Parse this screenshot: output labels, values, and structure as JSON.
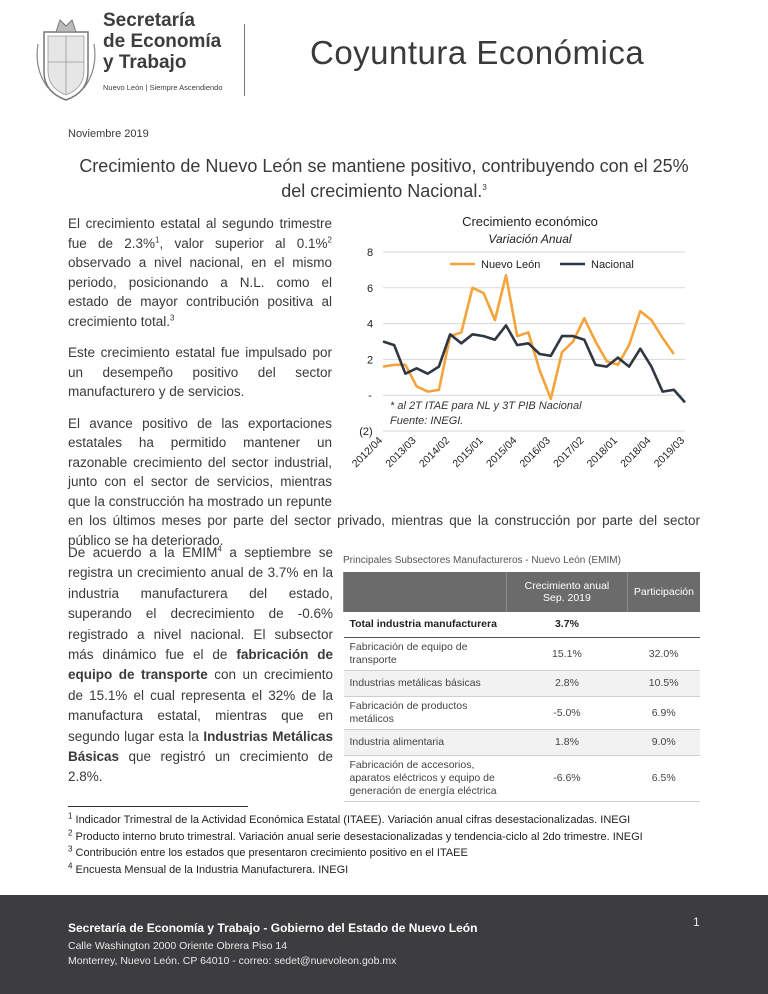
{
  "header": {
    "org_lines": [
      "Secretaría",
      "de Economía",
      "y Trabajo"
    ],
    "tagline": "Nuevo León | Siempre Ascendiendo",
    "title": "Coyuntura Económica"
  },
  "date": "Noviembre 2019",
  "headline": [
    {
      "text": "Crecimiento de Nuevo León se mantiene positivo, contribuyendo con el 25% del crecimiento Nacional."
    },
    {
      "text": "3",
      "style": "sup"
    }
  ],
  "paragraphs": [
    [
      {
        "text": "El crecimiento estatal al segundo trimestre fue de 2.3%"
      },
      {
        "text": "1",
        "style": "sup"
      },
      {
        "text": ", valor superior al 0.1%"
      },
      {
        "text": "2",
        "style": "sup"
      },
      {
        "text": " observado a nivel nacional, en el mismo periodo, posicionando a N.L. como el estado de mayor contribución positiva al crecimiento total."
      },
      {
        "text": "3",
        "style": "sup"
      }
    ],
    [
      {
        "text": "Este crecimiento estatal fue impulsado por un desempeño positivo del sector manufacturero y de servicios."
      }
    ],
    [
      {
        "text": "El avance positivo de las exportaciones estatales ha permitido mantener un razonable crecimiento del sector industrial, junto con el sector de servicios, mientras que la construcción ha mostrado un repunte en los últimos meses por parte del sector privado, mientras que la construcción por parte del sector público se ha deteriorado."
      }
    ],
    [
      {
        "text": "De acuerdo a la EMIM"
      },
      {
        "text": "4",
        "style": "sup"
      },
      {
        "text": " a septiembre se registra un crecimiento anual de 3.7% en la industria manufacturera del estado, superando el decrecimiento de -0.6% registrado a nivel nacional. El subsector más dinámico fue el de "
      },
      {
        "text": "fabricación de equipo de transporte",
        "style": "bold"
      },
      {
        "text": " con un crecimiento de 15.1% el cual representa el 32% de la manufactura estatal, mientras que en segundo lugar esta la "
      },
      {
        "text": "Industrias Metálicas Básicas",
        "style": "bold"
      },
      {
        "text": " que registró un crecimiento de 2.8%."
      }
    ]
  ],
  "chart_data": {
    "type": "line",
    "title": "Crecimiento económico",
    "subtitle": "Variación Anual",
    "categories": [
      "2012/04",
      null,
      null,
      "2013/03",
      null,
      null,
      "2014/02",
      null,
      null,
      "2015/01",
      null,
      null,
      "2015/04",
      null,
      null,
      "2016/03",
      null,
      null,
      "2017/02",
      null,
      null,
      "2018/01",
      null,
      null,
      "2018/04",
      null,
      null,
      "2019/03"
    ],
    "series": [
      {
        "name": "Nuevo León",
        "color": "#f4a43a",
        "values": [
          1.6,
          1.7,
          1.7,
          0.5,
          0.2,
          0.3,
          3.3,
          3.5,
          6.0,
          5.7,
          4.2,
          6.7,
          3.3,
          3.5,
          1.4,
          -0.2,
          2.4,
          3.0,
          4.3,
          3.0,
          1.9,
          1.7,
          2.8,
          4.7,
          4.2,
          3.2,
          2.3,
          null
        ]
      },
      {
        "name": "Nacional",
        "color": "#2f3842",
        "values": [
          3.0,
          2.8,
          1.2,
          1.5,
          1.2,
          1.6,
          3.4,
          2.9,
          3.4,
          3.3,
          3.1,
          3.9,
          2.8,
          2.9,
          2.3,
          2.2,
          3.3,
          3.3,
          3.1,
          1.7,
          1.6,
          2.1,
          1.6,
          2.6,
          1.6,
          0.2,
          0.3,
          -0.4
        ]
      }
    ],
    "ylim": [
      -2,
      8
    ],
    "yticks": [
      {
        "value": -2,
        "label": "(2)"
      },
      {
        "value": 0,
        "label": "-"
      },
      2,
      4,
      6,
      8
    ],
    "grid": true,
    "annotations": [
      "* al 2T ITAE para NL y 3T PIB Nacional",
      "Fuente: INEGI."
    ]
  },
  "table": {
    "title": "Principales Subsectores Manufactureros - Nuevo León (EMIM)",
    "headers": [
      "Crecimiento anual Sep. 2019",
      "Participación"
    ],
    "rows": [
      {
        "label": "Total industria manufacturera",
        "growth": "3.7%",
        "total": true
      },
      {
        "label": "Fabricación de equipo de transporte",
        "growth": "15.1%",
        "share": "32.0%"
      },
      {
        "label": "Industrias metálicas básicas",
        "growth": "2.8%",
        "share": "10.5%"
      },
      {
        "label": "Fabricación de productos metálicos",
        "growth": "-5.0%",
        "share": "6.9%"
      },
      {
        "label": "Industria alimentaria",
        "growth": "1.8%",
        "share": "9.0%"
      },
      {
        "label": "Fabricación de accesorios, aparatos eléctricos y equipo de generación de energía eléctrica",
        "growth": "-6.6%",
        "share": "6.5%"
      }
    ]
  },
  "footnotes": [
    {
      "mark": "1",
      "text": " Indicador Trimestral de la Actividad Económica Estatal (ITAEE). Variación anual cifras desestacionalizadas. INEGI"
    },
    {
      "mark": "2",
      "text": " Producto interno bruto trimestral. Variación anual serie desestacionalizadas y tendencia-ciclo al 2do trimestre. INEGI"
    },
    {
      "mark": "3",
      "text": " Contribución entre los estados que presentaron crecimiento positivo en el ITAEE"
    },
    {
      "mark": "4",
      "text": " Encuesta Mensual de la Industria Manufacturera. INEGI"
    }
  ],
  "footer": {
    "lines": [
      "Secretaría de Economía y Trabajo - Gobierno del Estado de Nuevo León",
      "Calle Washington 2000 Oriente Obrera Piso 14",
      "Monterrey, Nuevo León. CP 64010 - correo: sedet@nuevoleon.gob.mx"
    ],
    "page": "1"
  }
}
